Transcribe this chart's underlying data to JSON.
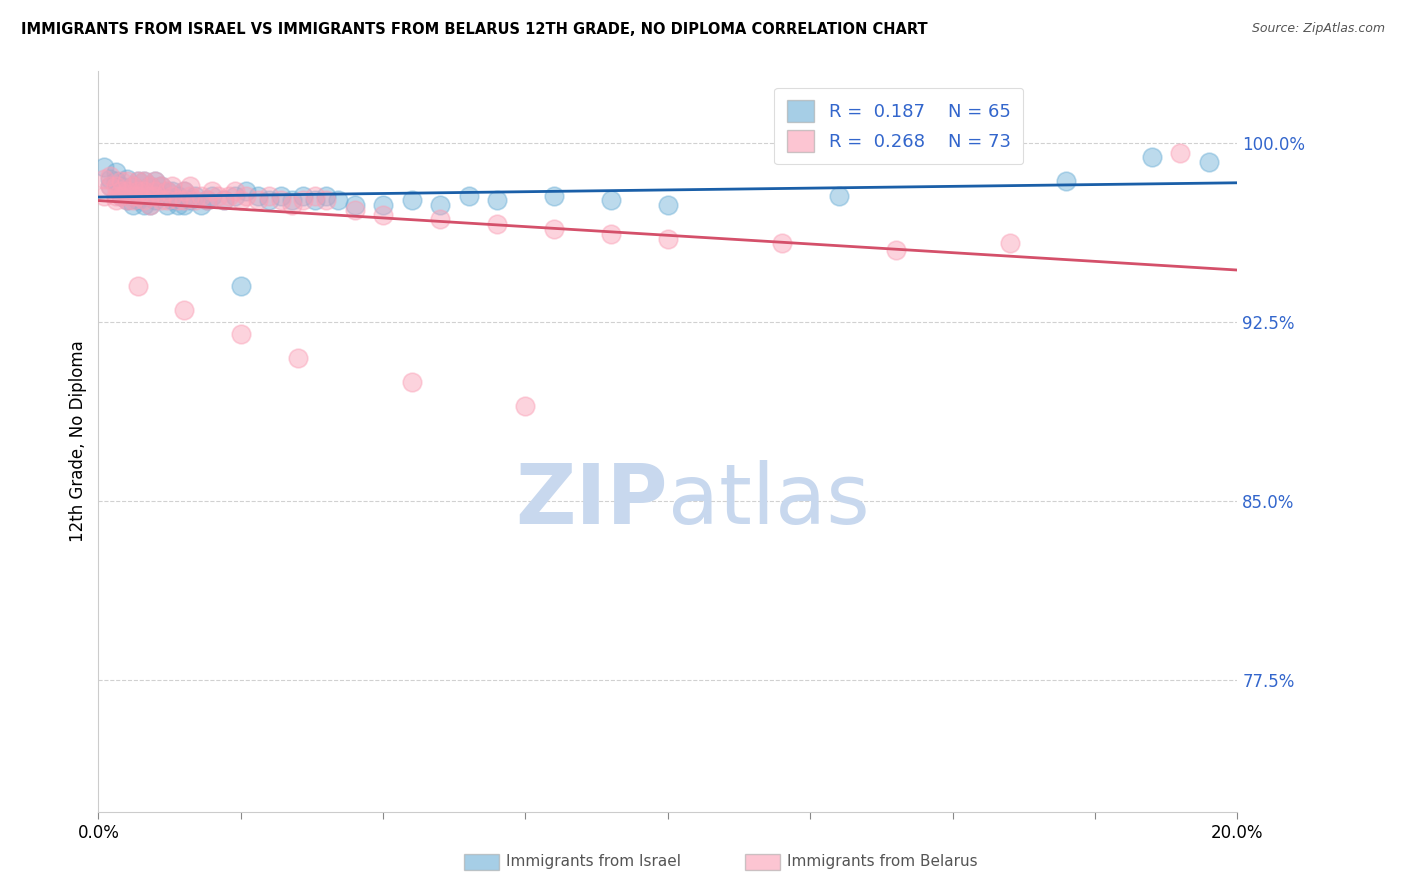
{
  "title": "IMMIGRANTS FROM ISRAEL VS IMMIGRANTS FROM BELARUS 12TH GRADE, NO DIPLOMA CORRELATION CHART",
  "source": "Source: ZipAtlas.com",
  "ylabel": "12th Grade, No Diploma",
  "xlim": [
    0.0,
    0.2
  ],
  "ylim": [
    0.72,
    1.03
  ],
  "yticks": [
    0.775,
    0.85,
    0.925,
    1.0
  ],
  "ytick_labels": [
    "77.5%",
    "85.0%",
    "92.5%",
    "100.0%"
  ],
  "legend_R_israel": "0.187",
  "legend_N_israel": "65",
  "legend_R_belarus": "0.268",
  "legend_N_belarus": "73",
  "color_israel": "#6baed6",
  "color_belarus": "#fa9fb5",
  "trendline_israel": "#1a5fa8",
  "trendline_belarus": "#d4506a",
  "tick_color": "#3366cc",
  "watermark_zip": "ZIP",
  "watermark_atlas": "atlas",
  "watermark_color_zip": "#c8d8ee",
  "watermark_color_atlas": "#c8d8ee",
  "israel_x": [
    0.001,
    0.002,
    0.002,
    0.003,
    0.003,
    0.004,
    0.004,
    0.005,
    0.005,
    0.005,
    0.006,
    0.006,
    0.006,
    0.007,
    0.007,
    0.007,
    0.008,
    0.008,
    0.008,
    0.009,
    0.009,
    0.009,
    0.01,
    0.01,
    0.01,
    0.011,
    0.011,
    0.012,
    0.012,
    0.013,
    0.013,
    0.014,
    0.014,
    0.015,
    0.015,
    0.016,
    0.017,
    0.018,
    0.019,
    0.02,
    0.022,
    0.024,
    0.026,
    0.028,
    0.03,
    0.032,
    0.034,
    0.036,
    0.038,
    0.04,
    0.042,
    0.05,
    0.055,
    0.06,
    0.065,
    0.07,
    0.08,
    0.09,
    0.1,
    0.13,
    0.17,
    0.185,
    0.195,
    0.025,
    0.045
  ],
  "israel_y": [
    0.99,
    0.985,
    0.982,
    0.988,
    0.984,
    0.982,
    0.978,
    0.98,
    0.976,
    0.985,
    0.978,
    0.974,
    0.982,
    0.976,
    0.98,
    0.984,
    0.974,
    0.978,
    0.984,
    0.974,
    0.978,
    0.982,
    0.976,
    0.98,
    0.984,
    0.978,
    0.982,
    0.974,
    0.98,
    0.976,
    0.98,
    0.974,
    0.978,
    0.974,
    0.98,
    0.976,
    0.978,
    0.974,
    0.976,
    0.978,
    0.976,
    0.978,
    0.98,
    0.978,
    0.976,
    0.978,
    0.976,
    0.978,
    0.976,
    0.978,
    0.976,
    0.974,
    0.976,
    0.974,
    0.978,
    0.976,
    0.978,
    0.976,
    0.974,
    0.978,
    0.984,
    0.994,
    0.992,
    0.94,
    0.974
  ],
  "belarus_x": [
    0.001,
    0.001,
    0.002,
    0.002,
    0.003,
    0.003,
    0.003,
    0.004,
    0.004,
    0.004,
    0.005,
    0.005,
    0.005,
    0.006,
    0.006,
    0.006,
    0.007,
    0.007,
    0.007,
    0.008,
    0.008,
    0.008,
    0.009,
    0.009,
    0.009,
    0.01,
    0.01,
    0.01,
    0.011,
    0.011,
    0.012,
    0.012,
    0.013,
    0.013,
    0.014,
    0.015,
    0.015,
    0.016,
    0.016,
    0.017,
    0.018,
    0.019,
    0.02,
    0.021,
    0.022,
    0.023,
    0.024,
    0.025,
    0.026,
    0.028,
    0.03,
    0.032,
    0.034,
    0.036,
    0.038,
    0.04,
    0.045,
    0.05,
    0.06,
    0.07,
    0.08,
    0.09,
    0.1,
    0.12,
    0.14,
    0.16,
    0.19,
    0.007,
    0.015,
    0.025,
    0.035,
    0.055,
    0.075
  ],
  "belarus_y": [
    0.985,
    0.978,
    0.982,
    0.986,
    0.978,
    0.982,
    0.976,
    0.98,
    0.984,
    0.978,
    0.976,
    0.98,
    0.984,
    0.978,
    0.982,
    0.976,
    0.98,
    0.984,
    0.978,
    0.976,
    0.98,
    0.984,
    0.978,
    0.982,
    0.974,
    0.98,
    0.984,
    0.978,
    0.976,
    0.982,
    0.976,
    0.98,
    0.978,
    0.982,
    0.976,
    0.98,
    0.976,
    0.978,
    0.982,
    0.976,
    0.978,
    0.976,
    0.98,
    0.978,
    0.976,
    0.978,
    0.98,
    0.976,
    0.978,
    0.976,
    0.978,
    0.976,
    0.974,
    0.976,
    0.978,
    0.976,
    0.972,
    0.97,
    0.968,
    0.966,
    0.964,
    0.962,
    0.96,
    0.958,
    0.955,
    0.958,
    0.996,
    0.94,
    0.93,
    0.92,
    0.91,
    0.9,
    0.89
  ]
}
